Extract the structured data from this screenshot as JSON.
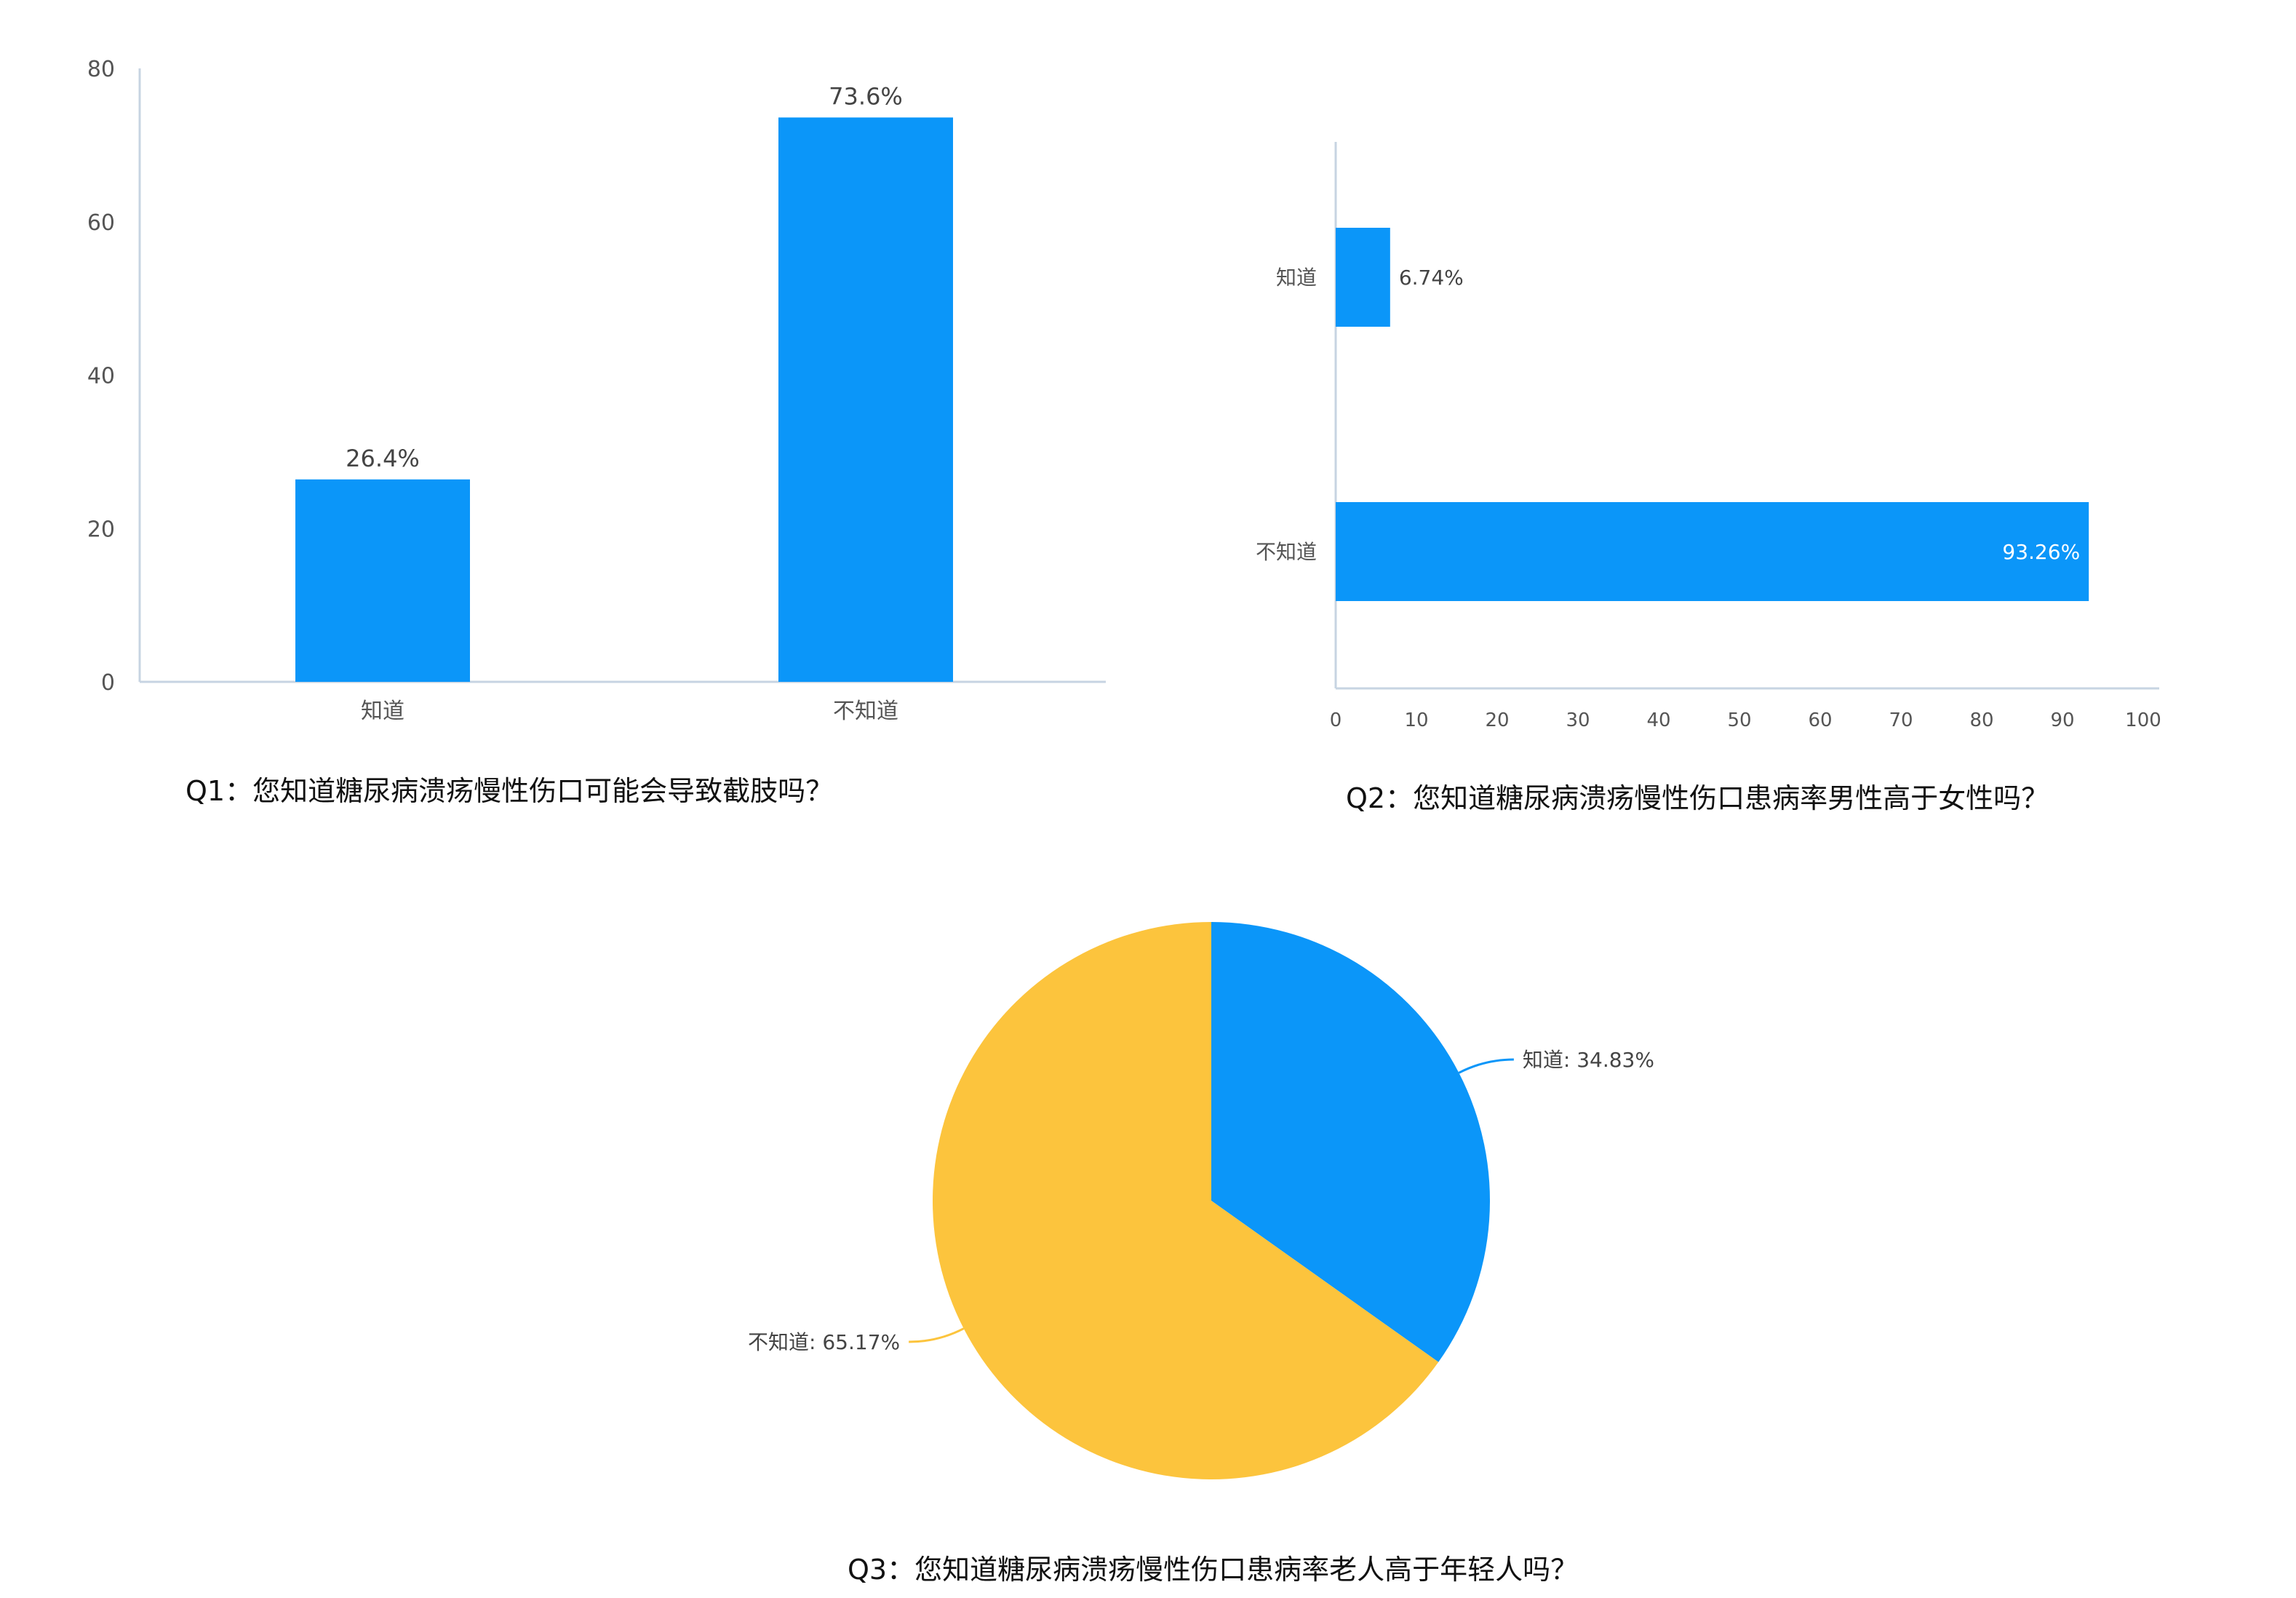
{
  "colors": {
    "bar": "#0b96f9",
    "pie_blue": "#0b96f9",
    "pie_yellow": "#fcc43d",
    "axis": "#c7d4e2",
    "tick_text": "#555555",
    "label_text": "#444444",
    "caption_text": "#111111",
    "background": "#ffffff"
  },
  "captions": {
    "q1": "Q1：您知道糖尿病溃疡慢性伤口可能会导致截肢吗？",
    "q2": "Q2：您知道糖尿病溃疡慢性伤口患病率男性高于女性吗？",
    "q3": "Q3：您知道糖尿病溃疡慢性伤口患病率老人高于年轻人吗？"
  },
  "chart_data": [
    {
      "id": "q1",
      "type": "bar",
      "orientation": "vertical",
      "categories": [
        "知道",
        "不知道"
      ],
      "values": [
        26.4,
        73.6
      ],
      "value_labels": [
        "26.4%",
        "73.6%"
      ],
      "yticks": [
        0,
        20,
        40,
        60,
        80
      ],
      "ylim": [
        0,
        80
      ],
      "grid": false,
      "legend": "none"
    },
    {
      "id": "q2",
      "type": "bar",
      "orientation": "horizontal",
      "categories": [
        "知道",
        "不知道"
      ],
      "values": [
        6.74,
        93.26
      ],
      "value_labels": [
        "6.74%",
        "93.26%"
      ],
      "xticks": [
        0,
        10,
        20,
        30,
        40,
        50,
        60,
        70,
        80,
        90,
        100
      ],
      "xlim": [
        0,
        100
      ],
      "grid": false,
      "legend": "none"
    },
    {
      "id": "q3",
      "type": "pie",
      "categories": [
        "知道",
        "不知道"
      ],
      "values": [
        34.83,
        65.17
      ],
      "slice_labels": [
        "知道: 34.83%",
        "不知道: 65.17%"
      ],
      "legend": "none"
    }
  ]
}
